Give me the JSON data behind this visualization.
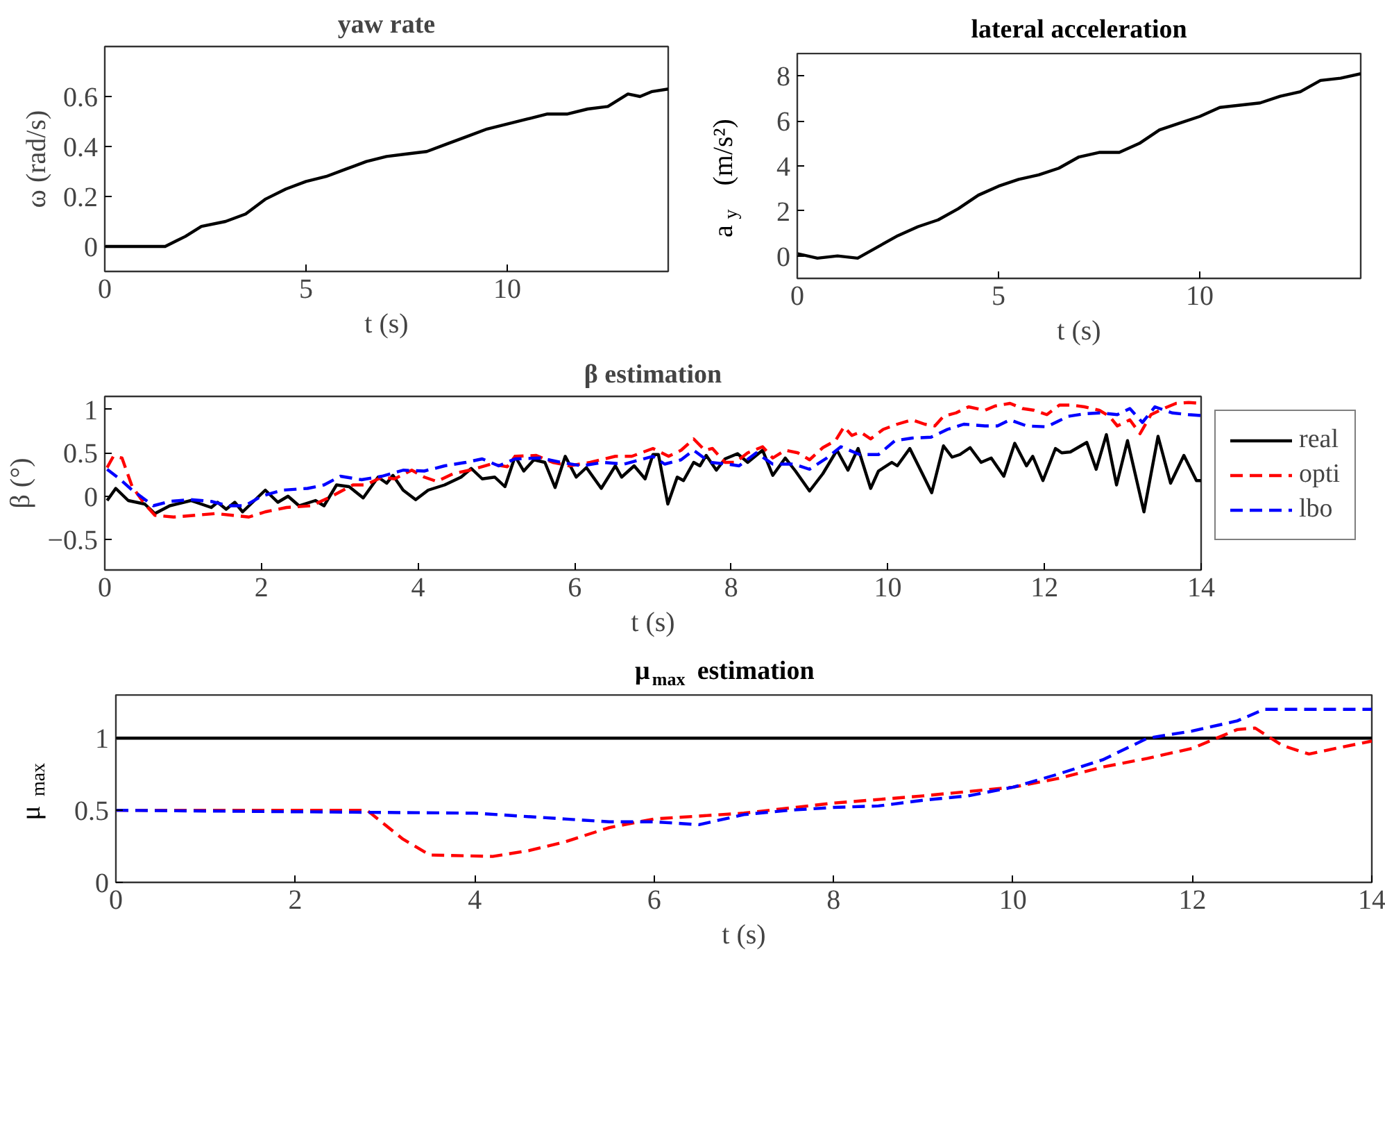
{
  "chart_data": [
    {
      "type": "line",
      "title": "yaw rate",
      "xlabel": "t (s)",
      "ylabel": "ω (rad/s)",
      "xlim": [
        0,
        14
      ],
      "ylim": [
        -0.1,
        0.8
      ],
      "xticks": [
        0,
        5,
        10
      ],
      "yticks": [
        0,
        0.2,
        0.4,
        0.6
      ],
      "grid": false,
      "series": [
        {
          "color": "#000000",
          "x": [
            0,
            1.5,
            2,
            2.4,
            3,
            3.5,
            4,
            4.5,
            5,
            5.5,
            6,
            6.5,
            7,
            7.5,
            8,
            8.5,
            9,
            9.5,
            10,
            10.5,
            11,
            11.5,
            12,
            12.5,
            13,
            13.3,
            13.6,
            14
          ],
          "values": [
            0,
            0,
            0.04,
            0.08,
            0.1,
            0.13,
            0.19,
            0.23,
            0.26,
            0.28,
            0.31,
            0.34,
            0.36,
            0.37,
            0.38,
            0.41,
            0.44,
            0.47,
            0.49,
            0.51,
            0.53,
            0.53,
            0.55,
            0.56,
            0.61,
            0.6,
            0.62,
            0.63
          ]
        }
      ]
    },
    {
      "type": "line",
      "title": "lateral acceleration",
      "xlabel": "t (s)",
      "ylabel": "a$_{y}$ (m/s²)",
      "xlim": [
        0,
        14
      ],
      "ylim": [
        -1,
        9
      ],
      "xticks": [
        0,
        5,
        10
      ],
      "yticks": [
        0,
        2,
        4,
        6,
        8
      ],
      "grid": false,
      "series": [
        {
          "color": "#000000",
          "x": [
            0,
            0.5,
            1,
            1.5,
            2,
            2.5,
            3,
            3.5,
            4,
            4.5,
            5,
            5.5,
            6,
            6.5,
            7,
            7.5,
            8,
            8.5,
            9,
            9.5,
            10,
            10.5,
            11,
            11.5,
            12,
            12.5,
            13,
            13.5,
            14
          ],
          "values": [
            0.1,
            -0.1,
            0,
            -0.1,
            0.4,
            0.9,
            1.3,
            1.6,
            2.1,
            2.7,
            3.1,
            3.4,
            3.6,
            3.9,
            4.4,
            4.6,
            4.6,
            5.0,
            5.6,
            5.9,
            6.2,
            6.6,
            6.7,
            6.8,
            7.1,
            7.3,
            7.8,
            7.9,
            8.1
          ]
        }
      ]
    },
    {
      "type": "line",
      "title": "β estimation",
      "xlabel": "t (s)",
      "ylabel": "β (°)",
      "xlim": [
        0,
        14
      ],
      "ylim": [
        -0.85,
        1.15
      ],
      "xticks": [
        0,
        2,
        4,
        6,
        8,
        10,
        12,
        14
      ],
      "yticks": [
        -0.5,
        0,
        0.5,
        1
      ],
      "grid": false,
      "legend": "right",
      "series": [
        {
          "name": "real",
          "color": "#000000",
          "line_style": "solid",
          "x": [
            0.03,
            0.14,
            0.3,
            0.51,
            0.64,
            0.83,
            1.1,
            1.36,
            1.44,
            1.55,
            1.66,
            1.76,
            2.05,
            2.21,
            2.34,
            2.48,
            2.69,
            2.8,
            2.96,
            3.12,
            3.3,
            3.49,
            3.6,
            3.68,
            3.81,
            3.97,
            4.13,
            4.34,
            4.55,
            4.68,
            4.82,
            4.98,
            5.11,
            5.24,
            5.35,
            5.48,
            5.62,
            5.75,
            5.88,
            6.02,
            6.15,
            6.34,
            6.52,
            6.6,
            6.76,
            6.9,
            7.0,
            7.07,
            7.19,
            7.31,
            7.39,
            7.52,
            7.6,
            7.68,
            7.81,
            7.92,
            8.08,
            8.21,
            8.4,
            8.53,
            8.69,
            8.82,
            9.0,
            9.17,
            9.35,
            9.49,
            9.62,
            9.78,
            9.88,
            10.05,
            10.12,
            10.28,
            10.44,
            10.56,
            10.71,
            10.82,
            10.92,
            11.05,
            11.19,
            11.32,
            11.48,
            11.62,
            11.77,
            11.85,
            11.98,
            12.14,
            12.22,
            12.33,
            12.54,
            12.66,
            12.79,
            12.92,
            13.06,
            13.27,
            13.45,
            13.61,
            13.78,
            13.94,
            14.0
          ],
          "values": [
            -0.05,
            0.09,
            -0.05,
            -0.09,
            -0.2,
            -0.11,
            -0.05,
            -0.13,
            -0.07,
            -0.15,
            -0.07,
            -0.18,
            0.07,
            -0.07,
            0,
            -0.11,
            -0.05,
            -0.11,
            0.13,
            0.11,
            -0.02,
            0.22,
            0.15,
            0.24,
            0.07,
            -0.04,
            0.07,
            0.13,
            0.22,
            0.32,
            0.2,
            0.22,
            0.11,
            0.46,
            0.29,
            0.42,
            0.39,
            0.1,
            0.46,
            0.22,
            0.33,
            0.09,
            0.35,
            0.22,
            0.35,
            0.2,
            0.48,
            0.48,
            -0.09,
            0.22,
            0.18,
            0.39,
            0.35,
            0.47,
            0.3,
            0.43,
            0.49,
            0.39,
            0.53,
            0.24,
            0.44,
            0.29,
            0.06,
            0.26,
            0.53,
            0.3,
            0.55,
            0.09,
            0.29,
            0.39,
            0.35,
            0.55,
            0.26,
            0.04,
            0.58,
            0.45,
            0.48,
            0.56,
            0.39,
            0.44,
            0.23,
            0.61,
            0.35,
            0.46,
            0.18,
            0.55,
            0.5,
            0.51,
            0.62,
            0.31,
            0.71,
            0.13,
            0.64,
            -0.18,
            0.69,
            0.15,
            0.47,
            0.18,
            0.18
          ]
        },
        {
          "name": "opti",
          "color": "#ff0000",
          "line_style": "dashed",
          "x": [
            0.03,
            0.11,
            0.22,
            0.35,
            0.51,
            0.64,
            0.88,
            1.15,
            1.42,
            1.63,
            1.84,
            2.05,
            2.32,
            2.64,
            2.9,
            3.17,
            3.33,
            3.54,
            3.7,
            3.92,
            4.08,
            4.24,
            4.45,
            4.66,
            4.93,
            5.14,
            5.24,
            5.51,
            5.72,
            5.93,
            6.2,
            6.52,
            6.73,
            7.0,
            7.2,
            7.36,
            7.52,
            7.66,
            7.76,
            7.92,
            8.05,
            8.21,
            8.4,
            8.53,
            8.69,
            8.85,
            9.0,
            9.17,
            9.33,
            9.44,
            9.54,
            9.65,
            9.78,
            9.94,
            10.12,
            10.31,
            10.47,
            10.6,
            10.71,
            10.87,
            11.03,
            11.24,
            11.37,
            11.56,
            11.72,
            11.87,
            12.03,
            12.19,
            12.35,
            12.51,
            12.7,
            12.83,
            12.93,
            13.09,
            13.22,
            13.36,
            13.52,
            13.68,
            13.84,
            14.0
          ],
          "values": [
            0.33,
            0.46,
            0.44,
            0.11,
            -0.09,
            -0.22,
            -0.24,
            -0.22,
            -0.2,
            -0.22,
            -0.24,
            -0.18,
            -0.13,
            -0.11,
            0,
            0.13,
            0.13,
            0.22,
            0.2,
            0.3,
            0.22,
            0.17,
            0.26,
            0.3,
            0.37,
            0.34,
            0.46,
            0.47,
            0.39,
            0.35,
            0.39,
            0.46,
            0.46,
            0.55,
            0.46,
            0.53,
            0.66,
            0.53,
            0.55,
            0.39,
            0.39,
            0.5,
            0.57,
            0.44,
            0.53,
            0.5,
            0.42,
            0.56,
            0.64,
            0.8,
            0.7,
            0.74,
            0.66,
            0.77,
            0.83,
            0.88,
            0.83,
            0.81,
            0.92,
            0.96,
            1.03,
            0.99,
            1.04,
            1.07,
            1.01,
            0.99,
            0.94,
            1.05,
            1.05,
            1.03,
            0.99,
            0.92,
            0.81,
            0.88,
            0.72,
            0.94,
            1.01,
            1.07,
            1.08,
            1.07
          ]
        },
        {
          "name": "lbo",
          "color": "#0000ff",
          "line_style": "dashed",
          "x": [
            0.03,
            0.19,
            0.35,
            0.62,
            0.83,
            1.1,
            1.36,
            1.57,
            1.79,
            2.0,
            2.27,
            2.59,
            2.8,
            3.01,
            3.28,
            3.54,
            3.81,
            4.08,
            4.34,
            4.61,
            4.82,
            5.03,
            5.24,
            5.56,
            5.83,
            6.09,
            6.36,
            6.63,
            7.0,
            7.15,
            7.36,
            7.52,
            7.73,
            7.95,
            8.1,
            8.32,
            8.53,
            8.8,
            9.0,
            9.22,
            9.4,
            9.64,
            9.88,
            10.09,
            10.31,
            10.55,
            10.76,
            10.97,
            11.24,
            11.4,
            11.56,
            11.77,
            12.03,
            12.3,
            12.51,
            12.72,
            12.93,
            13.09,
            13.25,
            13.41,
            13.63,
            13.84,
            14.0
          ],
          "values": [
            0.31,
            0.2,
            0.07,
            -0.11,
            -0.06,
            -0.04,
            -0.06,
            -0.11,
            -0.11,
            0,
            0.07,
            0.09,
            0.13,
            0.23,
            0.19,
            0.23,
            0.3,
            0.29,
            0.35,
            0.39,
            0.43,
            0.35,
            0.43,
            0.44,
            0.39,
            0.35,
            0.39,
            0.37,
            0.46,
            0.37,
            0.42,
            0.53,
            0.39,
            0.37,
            0.35,
            0.5,
            0.37,
            0.37,
            0.31,
            0.44,
            0.57,
            0.48,
            0.48,
            0.64,
            0.67,
            0.68,
            0.77,
            0.83,
            0.81,
            0.81,
            0.88,
            0.81,
            0.8,
            0.92,
            0.95,
            0.96,
            0.94,
            1.01,
            0.85,
            1.03,
            0.96,
            0.94,
            0.93
          ]
        }
      ]
    },
    {
      "type": "line",
      "title": "μ$_{max}$ estimation",
      "xlabel": "t (s)",
      "ylabel": "μ$_{max}$",
      "xlim": [
        0,
        14
      ],
      "ylim": [
        0,
        1.3
      ],
      "xticks": [
        0,
        2,
        4,
        6,
        8,
        10,
        12,
        14
      ],
      "yticks": [
        0,
        0.5,
        1
      ],
      "grid": false,
      "series": [
        {
          "color": "#000000",
          "line_style": "solid",
          "x": [
            0,
            14
          ],
          "values": [
            1,
            1
          ]
        },
        {
          "color": "#ff0000",
          "line_style": "dashed",
          "x": [
            0,
            2.8,
            3.2,
            3.5,
            4.2,
            4.6,
            5.0,
            5.5,
            6.0,
            7.0,
            8.0,
            9.0,
            10.0,
            10.5,
            11.0,
            11.5,
            12.0,
            12.5,
            12.7,
            13.0,
            13.3,
            13.6,
            14.0
          ],
          "values": [
            0.5,
            0.5,
            0.3,
            0.19,
            0.18,
            0.22,
            0.28,
            0.38,
            0.44,
            0.48,
            0.55,
            0.6,
            0.66,
            0.72,
            0.8,
            0.86,
            0.93,
            1.06,
            1.07,
            0.95,
            0.89,
            0.93,
            0.98
          ]
        },
        {
          "color": "#0000ff",
          "line_style": "dashed",
          "x": [
            0,
            4.0,
            5.0,
            5.5,
            6.0,
            6.5,
            7.0,
            7.5,
            8.0,
            8.5,
            9.0,
            9.5,
            10.0,
            10.5,
            11.0,
            11.5,
            12.0,
            12.5,
            12.8,
            14.0
          ],
          "values": [
            0.5,
            0.48,
            0.44,
            0.42,
            0.42,
            0.4,
            0.47,
            0.5,
            0.52,
            0.53,
            0.57,
            0.6,
            0.66,
            0.75,
            0.85,
            1.0,
            1.05,
            1.12,
            1.2,
            1.2
          ]
        }
      ]
    }
  ]
}
